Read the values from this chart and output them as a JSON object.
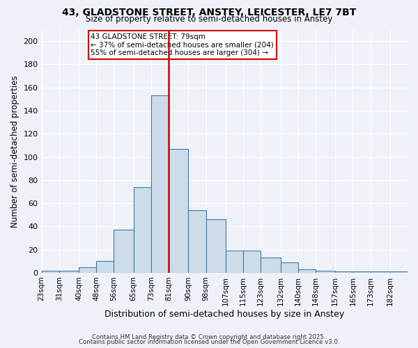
{
  "title_line1": "43, GLADSTONE STREET, ANSTEY, LEICESTER, LE7 7BT",
  "title_line2": "Size of property relative to semi-detached houses in Anstey",
  "xlabel": "Distribution of semi-detached houses by size in Anstey",
  "ylabel": "Number of semi-detached properties",
  "annotation_title": "43 GLADSTONE STREET: 79sqm",
  "annotation_line1": "← 37% of semi-detached houses are smaller (204)",
  "annotation_line2": "55% of semi-detached houses are larger (304) →",
  "property_size": 79,
  "bar_edges": [
    23,
    31,
    40,
    48,
    56,
    65,
    73,
    81,
    90,
    98,
    107,
    115,
    123,
    132,
    140,
    148,
    157,
    165,
    173,
    182,
    190
  ],
  "bar_heights": [
    2,
    2,
    5,
    10,
    37,
    74,
    153,
    107,
    54,
    46,
    19,
    19,
    13,
    9,
    3,
    2,
    1,
    1,
    1,
    1
  ],
  "bar_color": "#ccdce8",
  "bar_edge_color": "#4477aa",
  "vline_color": "#cc0000",
  "vline_x": 81,
  "ylim": [
    0,
    210
  ],
  "yticks": [
    0,
    20,
    40,
    60,
    80,
    100,
    120,
    140,
    160,
    180,
    200
  ],
  "background_color": "#eef2f8",
  "grid_color": "#ffffff",
  "annotation_box_facecolor": "#ffffff",
  "annotation_box_edgecolor": "#cc0000",
  "footer_line1": "Contains HM Land Registry data © Crown copyright and database right 2025.",
  "footer_line2": "Contains public sector information licensed under the Open Government Licence v3.0."
}
